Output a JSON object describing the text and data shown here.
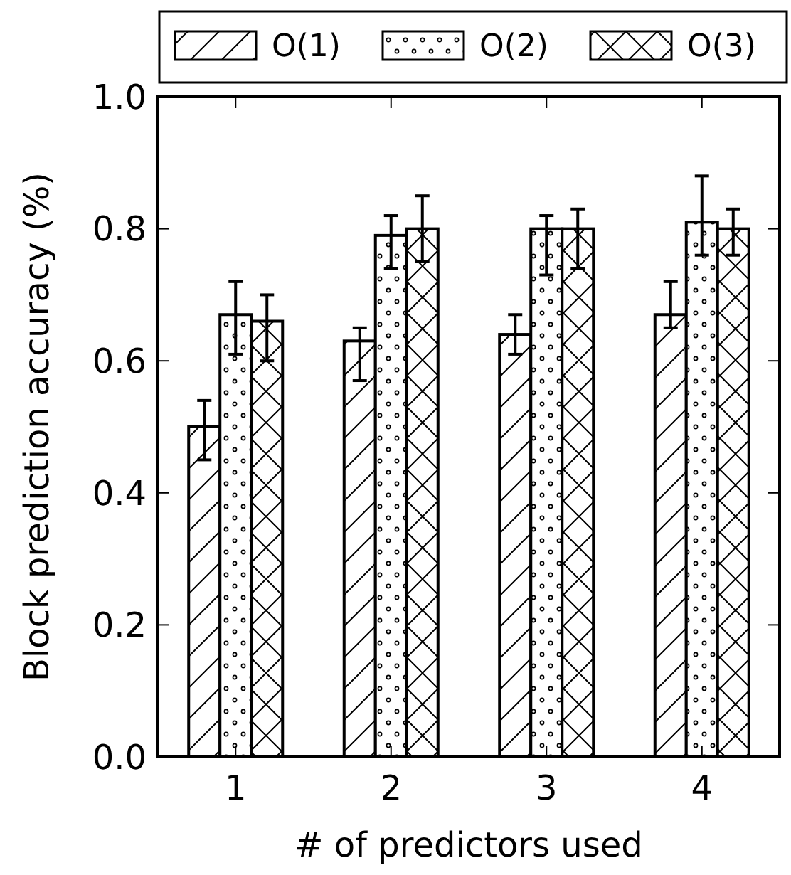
{
  "chart_data": {
    "type": "bar",
    "xlabel": "# of predictors used",
    "ylabel": "Block prediction accuracy (%)",
    "categories": [
      "1",
      "2",
      "3",
      "4"
    ],
    "ylim": [
      0,
      1
    ],
    "yticks": [
      {
        "value": 0,
        "label": "0.0"
      },
      {
        "value": 0.2,
        "label": "0.2"
      },
      {
        "value": 0.4,
        "label": "0.4"
      },
      {
        "value": 0.6,
        "label": "0.6"
      },
      {
        "value": 0.8,
        "label": "0.8"
      },
      {
        "value": 1,
        "label": "1.0"
      }
    ],
    "legend": "top",
    "grid": false,
    "series": [
      {
        "name": "O(1)",
        "color": "#000000",
        "values": [
          0.5,
          0.63,
          0.64,
          0.67
        ],
        "errors": [
          [
            0.45,
            0.54
          ],
          [
            0.57,
            0.65
          ],
          [
            0.61,
            0.67
          ],
          [
            0.65,
            0.72
          ]
        ]
      },
      {
        "name": "O(2)",
        "color": "#000000",
        "values": [
          0.67,
          0.79,
          0.8,
          0.81
        ],
        "errors": [
          [
            0.61,
            0.72
          ],
          [
            0.74,
            0.82
          ],
          [
            0.73,
            0.82
          ],
          [
            0.76,
            0.88
          ]
        ]
      },
      {
        "name": "O(3)",
        "color": "#000000",
        "values": [
          0.66,
          0.8,
          0.8,
          0.8
        ],
        "errors": [
          [
            0.6,
            0.7
          ],
          [
            0.75,
            0.85
          ],
          [
            0.74,
            0.83
          ],
          [
            0.76,
            0.83
          ]
        ]
      }
    ]
  }
}
